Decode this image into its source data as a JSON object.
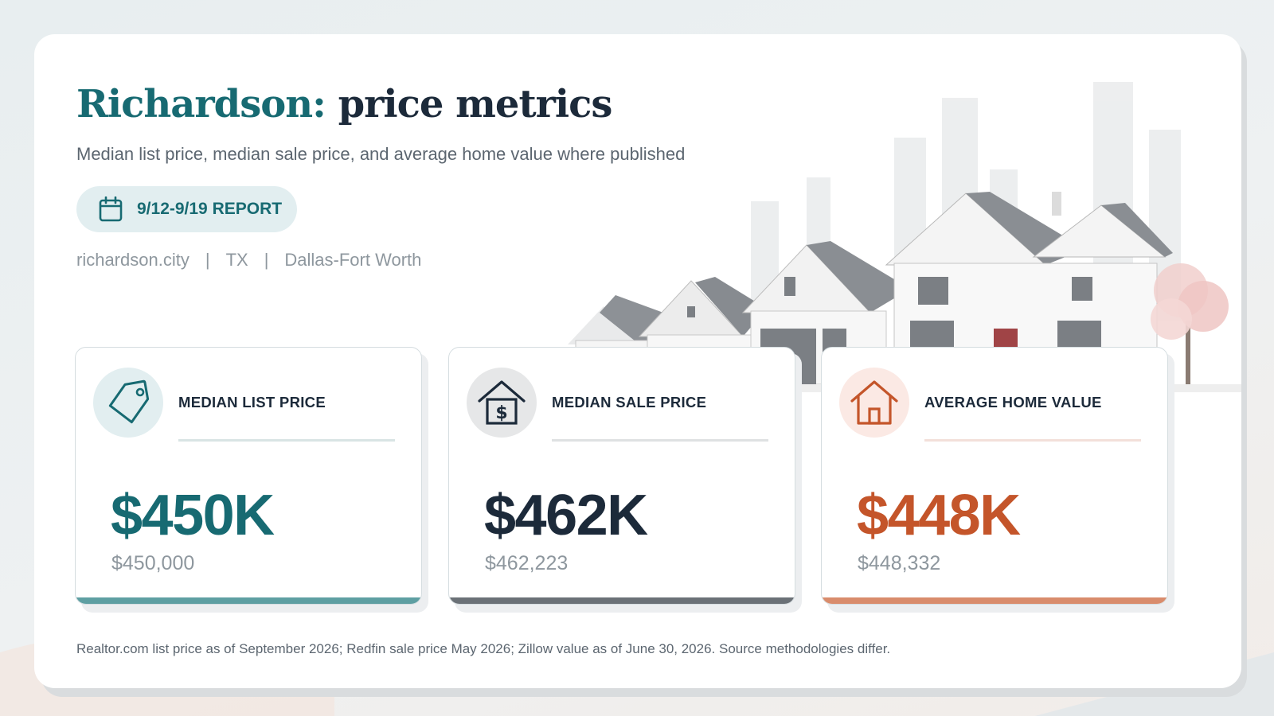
{
  "header": {
    "title_city": "Richardson:",
    "title_rest": "price metrics",
    "subtitle": "Median list price, median sale price, and average home value where published",
    "report_label": "9/12-9/19 REPORT",
    "meta": [
      "richardson.city",
      "TX",
      "Dallas-Fort Worth"
    ],
    "meta_separator": "|"
  },
  "metrics": [
    {
      "label": "MEDIAN LIST PRICE",
      "value": "$450K",
      "exact": "$450,000",
      "icon": "price-tag-icon",
      "accent": "#176a72",
      "bar_color": "#5e9fa2",
      "circle_color": "#e2eef0",
      "rule_color": "#d9e4e4"
    },
    {
      "label": "MEDIAN SALE PRICE",
      "value": "$462K",
      "exact": "$462,223",
      "icon": "house-dollar-icon",
      "accent": "#1c2a3a",
      "bar_color": "#6b7177",
      "circle_color": "#e6e7e8",
      "rule_color": "#dfe1e2"
    },
    {
      "label": "AVERAGE HOME VALUE",
      "value": "$448K",
      "exact": "$448,332",
      "icon": "home-icon",
      "accent": "#c4552a",
      "bar_color": "#d98c6c",
      "circle_color": "#fbe9e4",
      "rule_color": "#f3e0da"
    }
  ],
  "footnote": "Realtor.com list price as of September 2026; Redfin sale price May 2026; Zillow value as of June 30, 2026. Source methodologies differ."
}
